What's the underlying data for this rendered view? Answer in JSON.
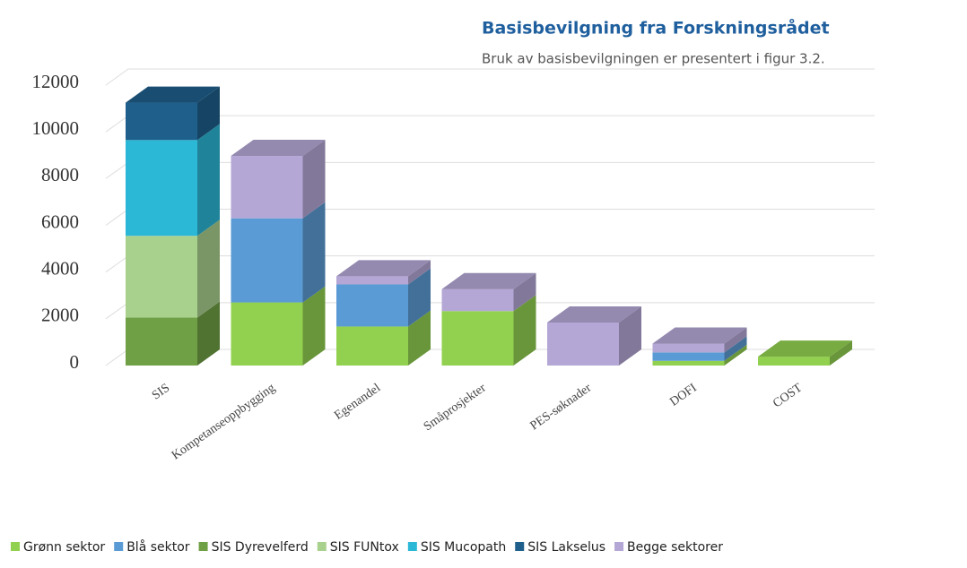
{
  "heading": "Basisbevilgning fra Forskningsrådet",
  "text": "Bruk av basisbevilgningen er presentert i figur 3.2.",
  "chart_data": {
    "type": "bar3d_stacked",
    "categories": [
      "SIS",
      "Kompetanseoppbygging",
      "Egenandel",
      "Småprosjekter",
      "PES-søknader",
      "DOFI",
      "COST"
    ],
    "series": [
      {
        "name": "Grønn sektor",
        "color": "#92d050",
        "values": [
          null,
          2700,
          1670,
          2330,
          null,
          200,
          380
        ]
      },
      {
        "name": "Blå sektor",
        "color": "#5b9bd5",
        "values": [
          null,
          3600,
          1800,
          null,
          null,
          360,
          null
        ]
      },
      {
        "name": "SIS Dyrevelferd",
        "color": "#70a046",
        "values": [
          2050,
          null,
          null,
          null,
          null,
          null,
          null
        ]
      },
      {
        "name": "SIS FUNtox",
        "color": "#a9d18e",
        "values": [
          3500,
          null,
          null,
          null,
          null,
          null,
          null
        ]
      },
      {
        "name": "SIS Mucopath",
        "color": "#2bb8d6",
        "values": [
          4100,
          null,
          null,
          null,
          null,
          null,
          null
        ]
      },
      {
        "name": "SIS Lakselus",
        "color": "#1f5f8b",
        "values": [
          1600,
          null,
          null,
          null,
          null,
          null,
          null
        ]
      },
      {
        "name": "Begge sektorer",
        "color": "#b4a7d6",
        "values": [
          null,
          2670,
          350,
          940,
          1840,
          380,
          null
        ]
      }
    ],
    "ylim": [
      0,
      12000
    ],
    "yticks": [
      0,
      2000,
      4000,
      6000,
      8000,
      10000,
      12000
    ],
    "grid": true,
    "legend": "bottom"
  }
}
